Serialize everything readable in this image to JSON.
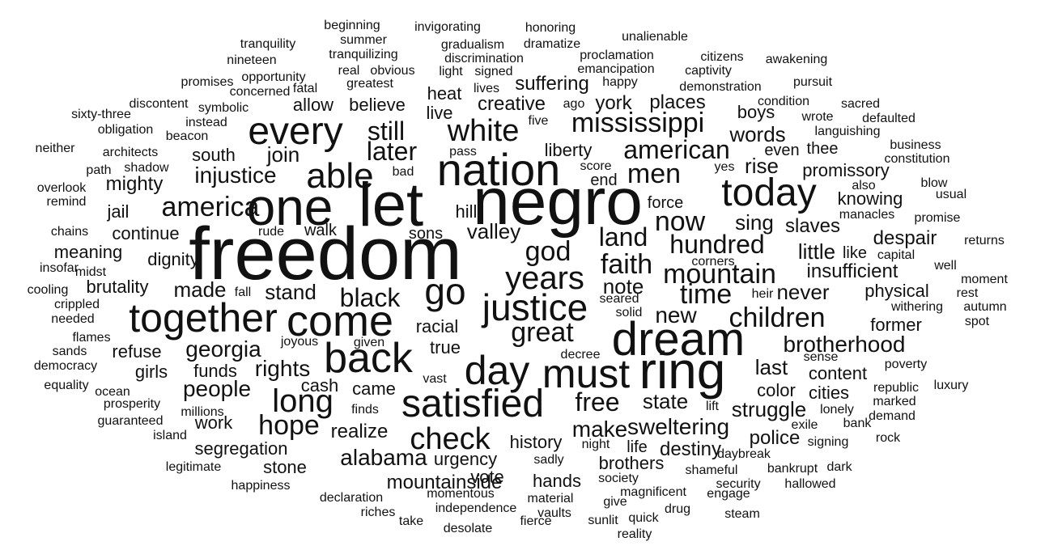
{
  "words": [
    "freedom",
    "negro",
    "dream",
    "let",
    "one",
    "ring",
    "nation",
    "day",
    "must",
    "satisfied",
    "come",
    "together",
    "back",
    "today",
    "justice",
    "go",
    "every",
    "able",
    "white",
    "long",
    "check",
    "years",
    "mississippi",
    "faith",
    "mountain",
    "time",
    "now",
    "children",
    "men",
    "american",
    "america",
    "great",
    "hope",
    "god",
    "still",
    "free",
    "black",
    "land",
    "hundred",
    "later",
    "brotherhood",
    "alabama",
    "sweltering",
    "mountainside",
    "rights",
    "people",
    "georgia",
    "injustice",
    "make",
    "realize",
    "state",
    "new",
    "never",
    "insufficient",
    "words",
    "rise",
    "sing",
    "join",
    "little",
    "note",
    "stand",
    "made",
    "struggle",
    "last",
    "valley",
    "slaves",
    "despair",
    "knowing",
    "physical",
    "continue",
    "police",
    "color",
    "cities",
    "content",
    "destiny",
    "suffering",
    "creative",
    "places",
    "york",
    "liberty",
    "mighty",
    "funds",
    "refuse",
    "girls",
    "dignity",
    "brutality",
    "meaning",
    "south",
    "believe",
    "allow",
    "heat",
    "live",
    "boys",
    "even",
    "thee",
    "promissory",
    "force",
    "history",
    "brothers",
    "urgency",
    "vote",
    "hands",
    "stone",
    "segregation",
    "work",
    "cash",
    "came",
    "racial",
    "true",
    "walk",
    "sons",
    "hill",
    "jail",
    "former",
    "like",
    "life",
    "end",
    "tranquility",
    "nineteen",
    "beginning",
    "summer",
    "invigorating",
    "honoring",
    "gradualism",
    "dramatize",
    "unalienable",
    "tranquilizing",
    "real",
    "obvious",
    "discrimination",
    "proclamation",
    "citizens",
    "awakening",
    "emancipation",
    "captivity",
    "promises",
    "opportunity",
    "concerned",
    "greatest",
    "light",
    "signed",
    "happy",
    "lives",
    "demonstration",
    "pursuit",
    "fatal",
    "symbolic",
    "discontent",
    "ago",
    "condition",
    "sacred",
    "sixty-three",
    "instead",
    "five",
    "wrote",
    "defaulted",
    "obligation",
    "beacon",
    "languishing",
    "neither",
    "architects",
    "pass",
    "business",
    "constitution",
    "shadow",
    "path",
    "score",
    "yes",
    "overlook",
    "bad",
    "blow",
    "remind",
    "also",
    "usual",
    "chains",
    "rude",
    "manacles",
    "promise",
    "capital",
    "insofar",
    "midst",
    "corners",
    "returns",
    "well",
    "moment",
    "cooling",
    "fall",
    "heir",
    "seared",
    "rest",
    "crippled",
    "withering",
    "autumn",
    "solid",
    "needed",
    "spot",
    "flames",
    "sands",
    "joyous",
    "given",
    "decree",
    "sense",
    "democracy",
    "poverty",
    "equality",
    "vast",
    "republic",
    "luxury",
    "ocean",
    "marked",
    "prosperity",
    "finds",
    "lift",
    "lonely",
    "guaranteed",
    "millions",
    "exile",
    "bank",
    "demand",
    "island",
    "night",
    "signing",
    "rock",
    "daybreak",
    "legitimate",
    "sadly",
    "bankrupt",
    "dark",
    "shameful",
    "society",
    "happiness",
    "security",
    "hallowed",
    "momentous",
    "magnificent",
    "engage",
    "declaration",
    "material",
    "give",
    "riches",
    "independence",
    "vaults",
    "drug",
    "steam",
    "take",
    "desolate",
    "fierce",
    "sunlit",
    "quick",
    "reality"
  ]
}
